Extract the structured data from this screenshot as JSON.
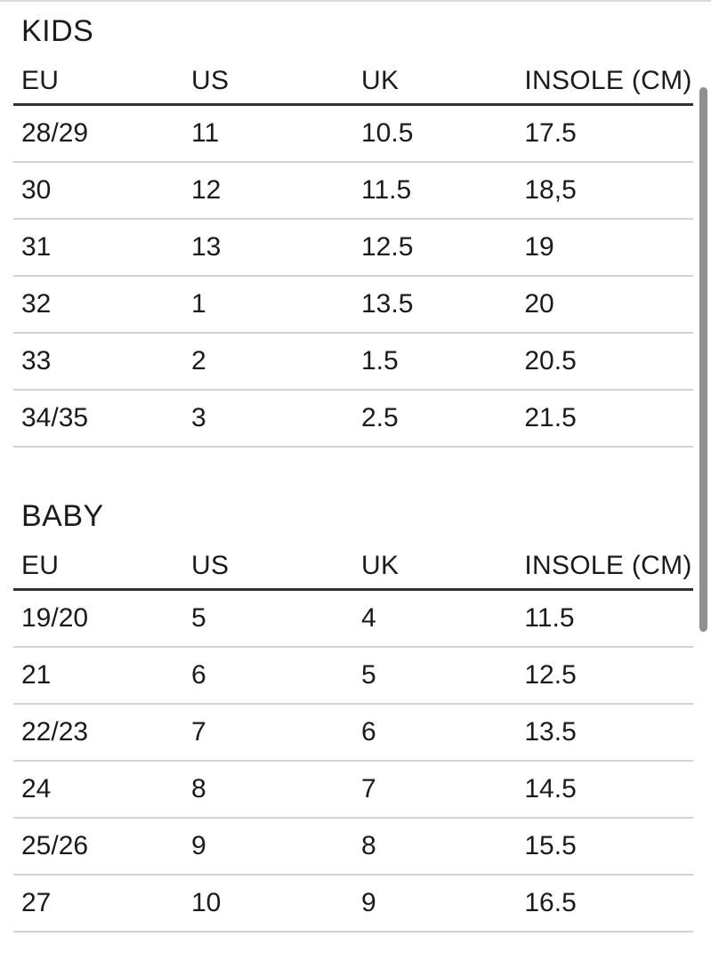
{
  "sections": [
    {
      "title": "KIDS",
      "columns": [
        "EU",
        "US",
        "UK",
        "INSOLE (CM)"
      ],
      "rows": [
        [
          "28/29",
          "11",
          "10.5",
          "17.5"
        ],
        [
          "30",
          "12",
          "11.5",
          "18,5"
        ],
        [
          "31",
          "13",
          "12.5",
          "19"
        ],
        [
          "32",
          "1",
          "13.5",
          "20"
        ],
        [
          "33",
          "2",
          "1.5",
          "20.5"
        ],
        [
          "34/35",
          "3",
          "2.5",
          "21.5"
        ]
      ]
    },
    {
      "title": "BABY",
      "columns": [
        "EU",
        "US",
        "UK",
        "INSOLE (CM)"
      ],
      "rows": [
        [
          "19/20",
          "5",
          "4",
          "11.5"
        ],
        [
          "21",
          "6",
          "5",
          "12.5"
        ],
        [
          "22/23",
          "7",
          "6",
          "13.5"
        ],
        [
          "24",
          "8",
          "7",
          "14.5"
        ],
        [
          "25/26",
          "9",
          "8",
          "15.5"
        ],
        [
          "27",
          "10",
          "9",
          "16.5"
        ]
      ]
    }
  ],
  "colors": {
    "background": "#ffffff",
    "text": "#1b1b1b",
    "header_rule": "#303030",
    "row_rule": "#d2d2d2",
    "top_rule": "#dcdcdc",
    "scrollbar": "#8f8f8f"
  }
}
